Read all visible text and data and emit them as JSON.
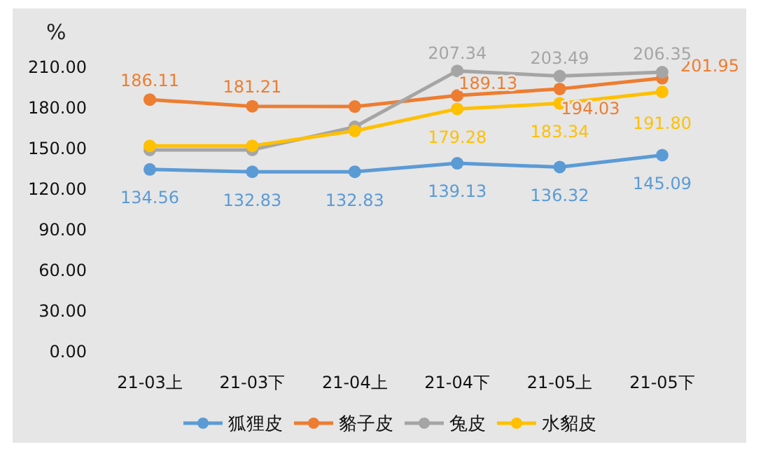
{
  "chart_data": {
    "type": "line",
    "ylabel": "%",
    "categories": [
      "21-03上",
      "21-03下",
      "21-04上",
      "21-04下",
      "21-05上",
      "21-05下"
    ],
    "ylim": [
      0,
      210
    ],
    "yticks": [
      {
        "value": 0,
        "label": "0.00"
      },
      {
        "value": 30,
        "label": "30.00"
      },
      {
        "value": 60,
        "label": "60.00"
      },
      {
        "value": 90,
        "label": "90.00"
      },
      {
        "value": 120,
        "label": "120.00"
      },
      {
        "value": 150,
        "label": "150.00"
      },
      {
        "value": 180,
        "label": "180.00"
      },
      {
        "value": 210,
        "label": "210.00"
      }
    ],
    "grid": false,
    "legend": "bottom",
    "marker": "circle",
    "line_style": "solid",
    "series": [
      {
        "name": "狐狸皮",
        "color": "#5b9bd5",
        "values": [
          134.56,
          132.83,
          132.83,
          139.13,
          136.32,
          145.09
        ],
        "value_labels": [
          "134.56",
          "132.83",
          "132.83",
          "139.13",
          "136.32",
          "145.09"
        ]
      },
      {
        "name": "貉子皮",
        "color": "#ed7d31",
        "values": [
          186.11,
          181.21,
          181,
          189.13,
          194.03,
          201.95
        ],
        "value_labels": [
          "186.11",
          "181.21",
          null,
          "189.13",
          "194.03",
          "201.95"
        ]
      },
      {
        "name": "兔皮",
        "color": "#a5a5a5",
        "values": [
          149,
          149,
          166,
          207.34,
          203.49,
          206.35
        ],
        "value_labels": [
          null,
          null,
          null,
          "207.34",
          "203.49",
          "206.35"
        ]
      },
      {
        "name": "水貂皮",
        "color": "#ffc000",
        "values": [
          152,
          152,
          163,
          179.28,
          183.34,
          191.8
        ],
        "value_labels": [
          null,
          null,
          null,
          "179.28",
          "183.34",
          "191.80"
        ]
      }
    ]
  }
}
